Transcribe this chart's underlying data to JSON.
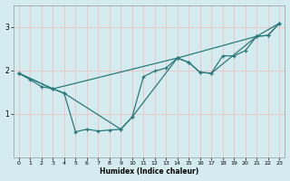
{
  "title": "",
  "xlabel": "Humidex (Indice chaleur)",
  "bg_color": "#d4ecf0",
  "line_color": "#2a7a7a",
  "grid_color": "#f0c0c0",
  "xlim": [
    -0.5,
    23.5
  ],
  "ylim": [
    0,
    3.5
  ],
  "yticks": [
    1,
    2,
    3
  ],
  "xticks": [
    0,
    1,
    2,
    3,
    4,
    5,
    6,
    7,
    8,
    9,
    10,
    11,
    12,
    13,
    14,
    15,
    16,
    17,
    18,
    19,
    20,
    21,
    22,
    23
  ],
  "line1_x": [
    0,
    1,
    2,
    3,
    4,
    5,
    6,
    7,
    8,
    9,
    10,
    11,
    12,
    13,
    14,
    15,
    16,
    17,
    18,
    19,
    20,
    21,
    22,
    23
  ],
  "line1_y": [
    1.93,
    1.78,
    1.62,
    1.57,
    1.47,
    0.58,
    0.64,
    0.6,
    0.62,
    0.64,
    0.92,
    1.85,
    1.98,
    2.05,
    2.28,
    2.18,
    1.95,
    1.93,
    2.33,
    2.33,
    2.45,
    2.78,
    2.8,
    3.08
  ],
  "line2_x": [
    0,
    3,
    4,
    9,
    10,
    14,
    15,
    16,
    17,
    21,
    22,
    23
  ],
  "line2_y": [
    1.93,
    1.57,
    1.47,
    0.64,
    0.92,
    2.28,
    2.18,
    1.95,
    1.93,
    2.78,
    2.8,
    3.08
  ],
  "line3_x": [
    0,
    3,
    14,
    21,
    23
  ],
  "line3_y": [
    1.93,
    1.57,
    2.28,
    2.78,
    3.08
  ],
  "marker_size": 3.5,
  "line_width": 0.9
}
